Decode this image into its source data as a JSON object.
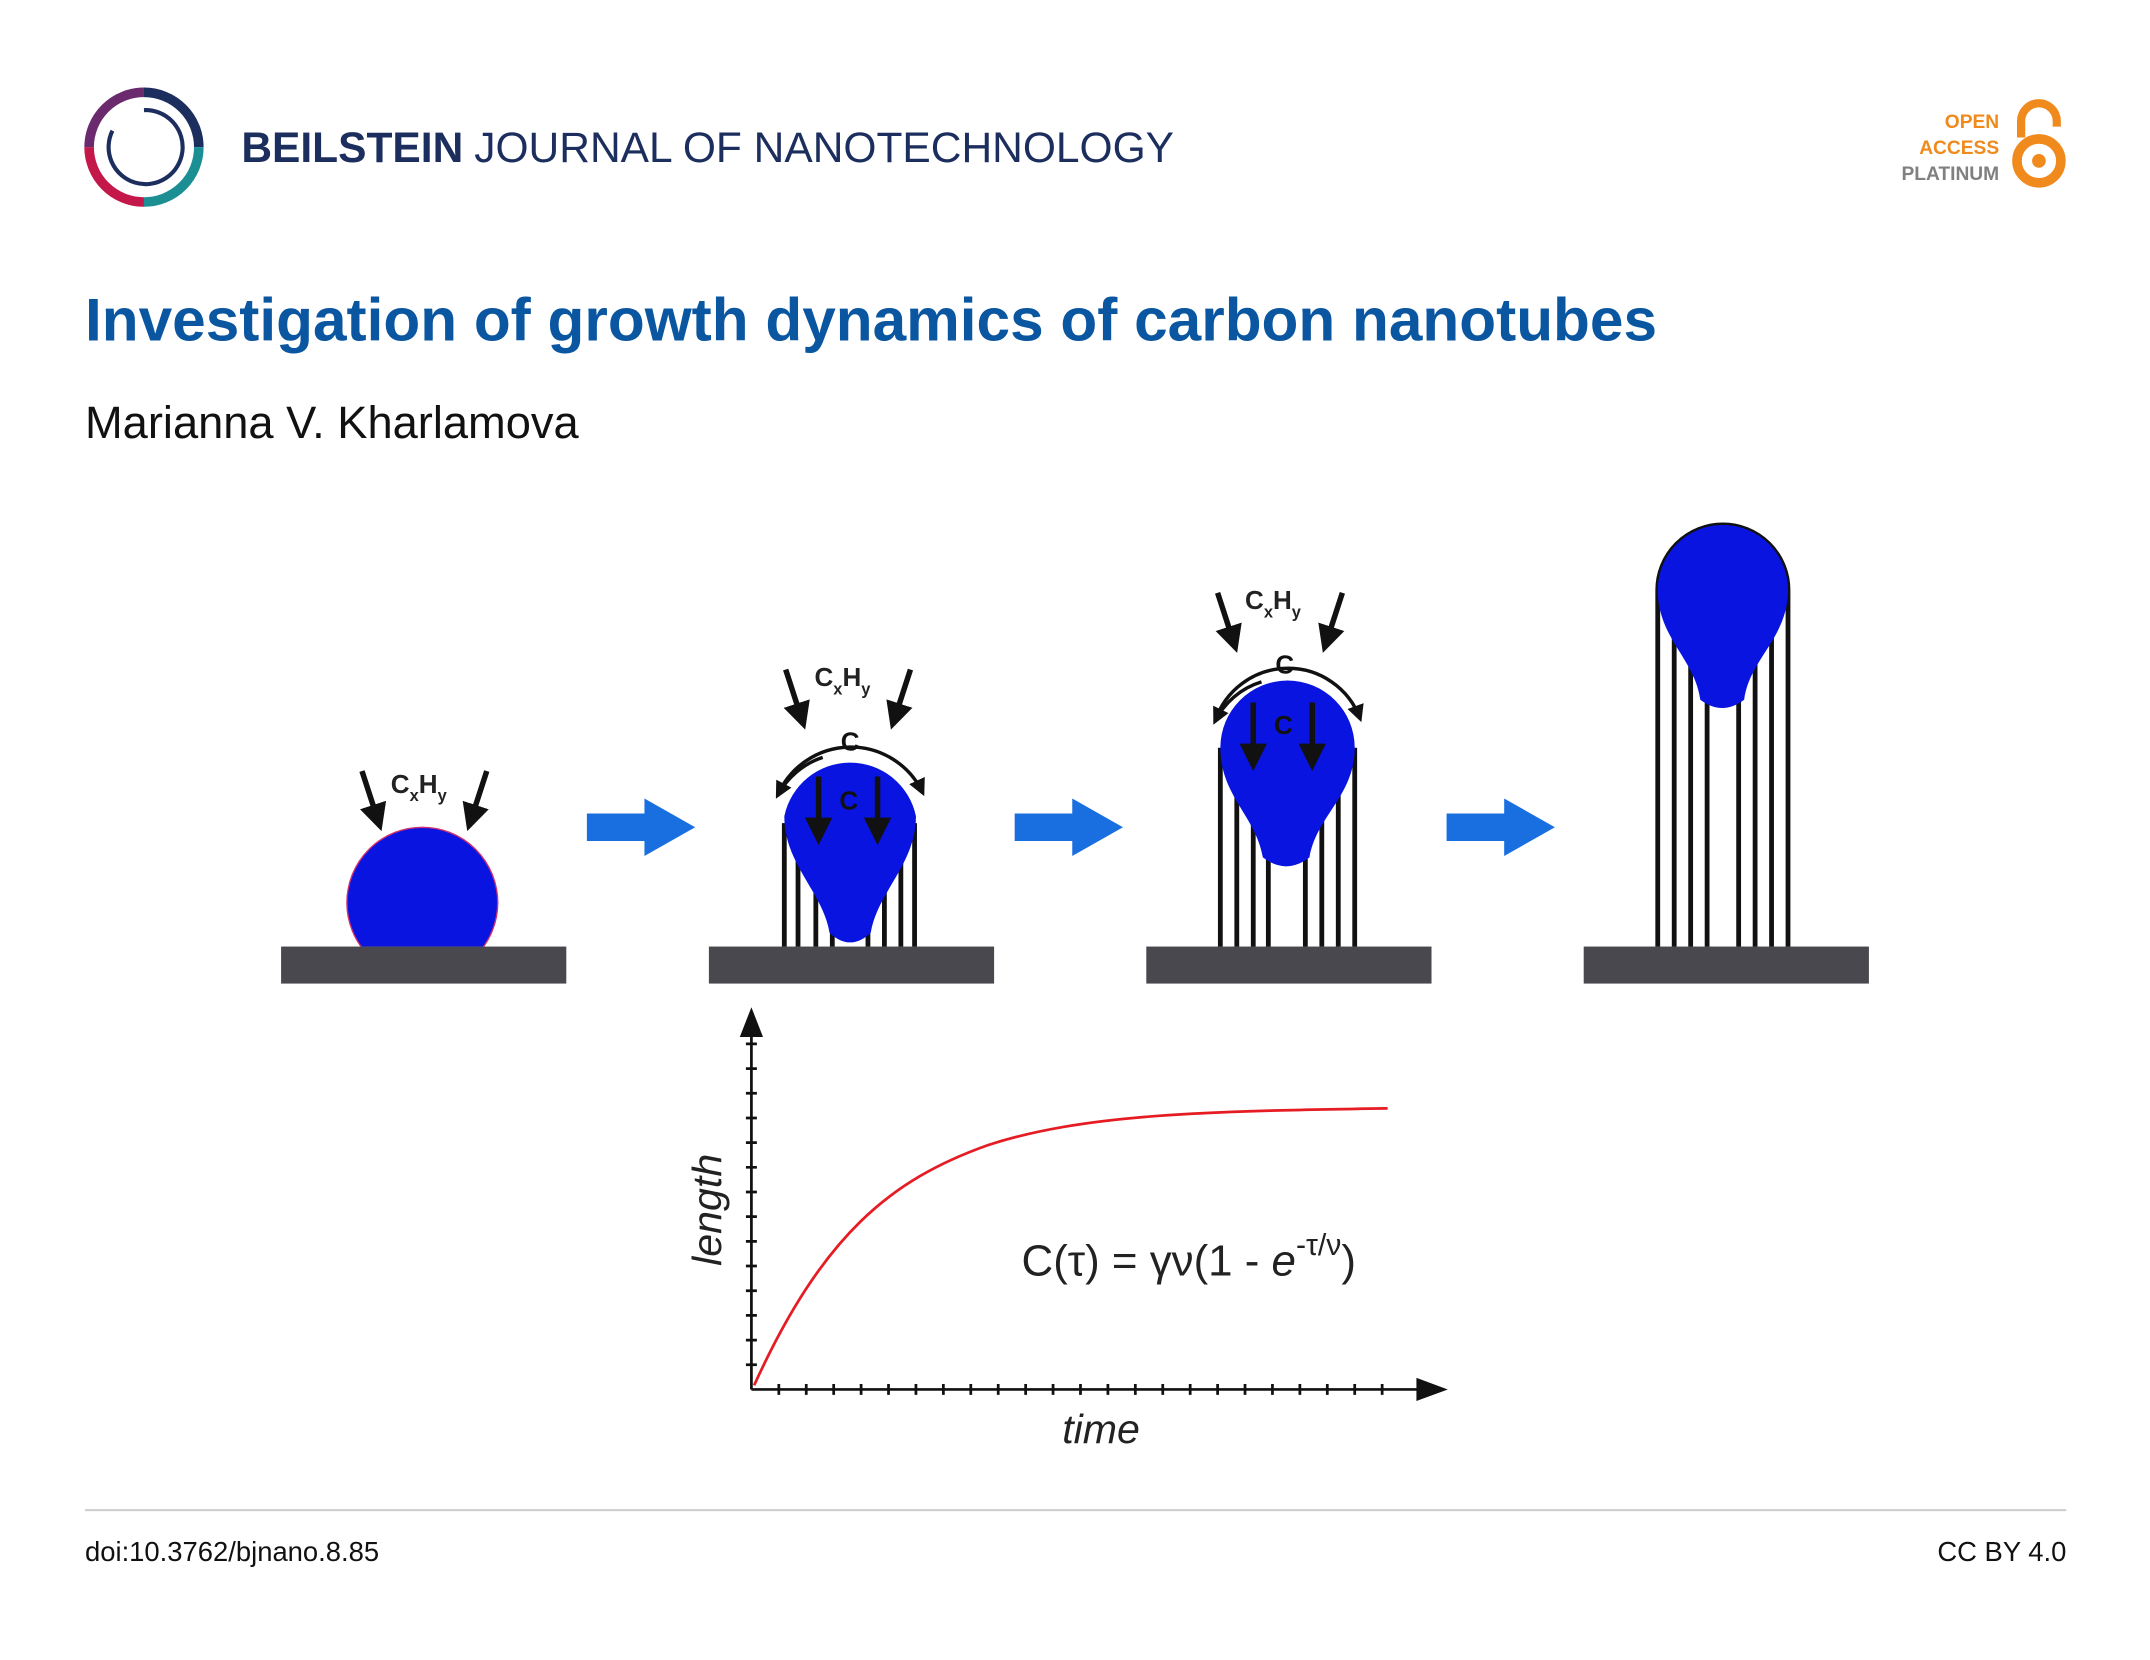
{
  "header": {
    "journal_bold": "BEILSTEIN",
    "journal_rest": "JOURNAL OF NANOTECHNOLOGY",
    "badge": [
      "OPEN",
      "ACCESS",
      "PLATINUM"
    ]
  },
  "title": "Investigation of growth dynamics of carbon nanotubes",
  "author": "Marianna V. Kharlamova",
  "figure": {
    "precursor": {
      "c": "C",
      "x": "x",
      "h": "H",
      "y": "y"
    },
    "carbon": "C",
    "y_label": "length",
    "x_label": "time",
    "formula": {
      "left": "C(τ) = γν(1 - ",
      "base": "e",
      "exponent": "-τ/ν",
      "right": ")"
    }
  },
  "footer": {
    "doi": "doi:10.3762/bjnano.8.85",
    "license": "CC BY 4.0"
  }
}
